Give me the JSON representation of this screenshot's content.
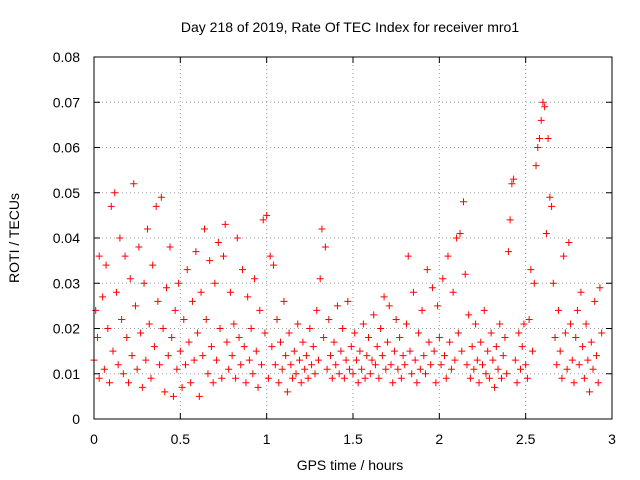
{
  "chart_data": {
    "type": "scatter",
    "title": "Day 218 of 2019, Rate Of TEC Index for receiver mro1",
    "xlabel": "GPS time / hours",
    "ylabel": "ROTI / TECUs",
    "xlim": [
      0,
      3
    ],
    "ylim": [
      0,
      0.08
    ],
    "x_ticks": [
      0,
      0.5,
      1,
      1.5,
      2,
      2.5,
      3
    ],
    "x_tick_labels": [
      "0",
      "0.5",
      "1",
      "1.5",
      "2",
      "2.5",
      "3"
    ],
    "y_ticks": [
      0,
      0.01,
      0.02,
      0.03,
      0.04,
      0.05,
      0.06,
      0.07,
      0.08
    ],
    "y_tick_labels": [
      "0",
      "0.01",
      "0.02",
      "0.03",
      "0.04",
      "0.05",
      "0.06",
      "0.07",
      "0.08"
    ],
    "grid": true,
    "marker": "+",
    "color": "#ff0000",
    "series": [
      {
        "name": "mro1",
        "points": [
          [
            0.0,
            0.013
          ],
          [
            0.01,
            0.024
          ],
          [
            0.02,
            0.018
          ],
          [
            0.03,
            0.009
          ],
          [
            0.03,
            0.036
          ],
          [
            0.05,
            0.027
          ],
          [
            0.06,
            0.011
          ],
          [
            0.07,
            0.034
          ],
          [
            0.08,
            0.02
          ],
          [
            0.09,
            0.008
          ],
          [
            0.1,
            0.047
          ],
          [
            0.11,
            0.015
          ],
          [
            0.12,
            0.05
          ],
          [
            0.13,
            0.028
          ],
          [
            0.14,
            0.012
          ],
          [
            0.15,
            0.04
          ],
          [
            0.16,
            0.022
          ],
          [
            0.17,
            0.01
          ],
          [
            0.18,
            0.036
          ],
          [
            0.19,
            0.018
          ],
          [
            0.2,
            0.008
          ],
          [
            0.21,
            0.031
          ],
          [
            0.22,
            0.014
          ],
          [
            0.23,
            0.052
          ],
          [
            0.24,
            0.025
          ],
          [
            0.25,
            0.011
          ],
          [
            0.26,
            0.038
          ],
          [
            0.27,
            0.019
          ],
          [
            0.28,
            0.007
          ],
          [
            0.29,
            0.03
          ],
          [
            0.3,
            0.013
          ],
          [
            0.31,
            0.042
          ],
          [
            0.32,
            0.021
          ],
          [
            0.33,
            0.009
          ],
          [
            0.34,
            0.034
          ],
          [
            0.35,
            0.016
          ],
          [
            0.36,
            0.047
          ],
          [
            0.37,
            0.026
          ],
          [
            0.38,
            0.012
          ],
          [
            0.39,
            0.049
          ],
          [
            0.4,
            0.02
          ],
          [
            0.41,
            0.006
          ],
          [
            0.42,
            0.029
          ],
          [
            0.43,
            0.014
          ],
          [
            0.44,
            0.038
          ],
          [
            0.45,
            0.018
          ],
          [
            0.46,
            0.005
          ],
          [
            0.47,
            0.024
          ],
          [
            0.48,
            0.011
          ],
          [
            0.49,
            0.03
          ],
          [
            0.5,
            0.015
          ],
          [
            0.51,
            0.007
          ],
          [
            0.52,
            0.022
          ],
          [
            0.53,
            0.012
          ],
          [
            0.54,
            0.033
          ],
          [
            0.55,
            0.017
          ],
          [
            0.56,
            0.008
          ],
          [
            0.57,
            0.026
          ],
          [
            0.58,
            0.013
          ],
          [
            0.59,
            0.037
          ],
          [
            0.6,
            0.019
          ],
          [
            0.61,
            0.005
          ],
          [
            0.62,
            0.028
          ],
          [
            0.63,
            0.014
          ],
          [
            0.64,
            0.042
          ],
          [
            0.65,
            0.022
          ],
          [
            0.66,
            0.01
          ],
          [
            0.67,
            0.035
          ],
          [
            0.68,
            0.016
          ],
          [
            0.69,
            0.008
          ],
          [
            0.7,
            0.03
          ],
          [
            0.71,
            0.013
          ],
          [
            0.72,
            0.039
          ],
          [
            0.73,
            0.02
          ],
          [
            0.74,
            0.009
          ],
          [
            0.75,
            0.036
          ],
          [
            0.76,
            0.043
          ],
          [
            0.77,
            0.017
          ],
          [
            0.78,
            0.011
          ],
          [
            0.79,
            0.028
          ],
          [
            0.8,
            0.014
          ],
          [
            0.81,
            0.021
          ],
          [
            0.82,
            0.009
          ],
          [
            0.83,
            0.04
          ],
          [
            0.84,
            0.018
          ],
          [
            0.85,
            0.012
          ],
          [
            0.86,
            0.033
          ],
          [
            0.87,
            0.016
          ],
          [
            0.88,
            0.008
          ],
          [
            0.89,
            0.027
          ],
          [
            0.9,
            0.013
          ],
          [
            0.91,
            0.02
          ],
          [
            0.92,
            0.01
          ],
          [
            0.93,
            0.031
          ],
          [
            0.94,
            0.015
          ],
          [
            0.95,
            0.007
          ],
          [
            0.96,
            0.024
          ],
          [
            0.97,
            0.012
          ],
          [
            0.98,
            0.044
          ],
          [
            0.99,
            0.019
          ],
          [
            1.0,
            0.045
          ],
          [
            1.01,
            0.009
          ],
          [
            1.02,
            0.036
          ],
          [
            1.03,
            0.016
          ],
          [
            1.04,
            0.034
          ],
          [
            1.05,
            0.012
          ],
          [
            1.06,
            0.022
          ],
          [
            1.07,
            0.008
          ],
          [
            1.08,
            0.017
          ],
          [
            1.09,
            0.011
          ],
          [
            1.1,
            0.026
          ],
          [
            1.11,
            0.014
          ],
          [
            1.12,
            0.006
          ],
          [
            1.13,
            0.019
          ],
          [
            1.14,
            0.012
          ],
          [
            1.15,
            0.009
          ],
          [
            1.16,
            0.015
          ],
          [
            1.17,
            0.01
          ],
          [
            1.18,
            0.021
          ],
          [
            1.19,
            0.013
          ],
          [
            1.2,
            0.008
          ],
          [
            1.21,
            0.017
          ],
          [
            1.22,
            0.011
          ],
          [
            1.23,
            0.014
          ],
          [
            1.24,
            0.009
          ],
          [
            1.25,
            0.02
          ],
          [
            1.26,
            0.012
          ],
          [
            1.27,
            0.016
          ],
          [
            1.28,
            0.01
          ],
          [
            1.29,
            0.024
          ],
          [
            1.3,
            0.013
          ],
          [
            1.31,
            0.031
          ],
          [
            1.32,
            0.042
          ],
          [
            1.33,
            0.018
          ],
          [
            1.34,
            0.038
          ],
          [
            1.35,
            0.011
          ],
          [
            1.36,
            0.022
          ],
          [
            1.37,
            0.014
          ],
          [
            1.38,
            0.009
          ],
          [
            1.39,
            0.017
          ],
          [
            1.4,
            0.012
          ],
          [
            1.41,
            0.025
          ],
          [
            1.42,
            0.01
          ],
          [
            1.43,
            0.015
          ],
          [
            1.44,
            0.02
          ],
          [
            1.45,
            0.009
          ],
          [
            1.46,
            0.013
          ],
          [
            1.47,
            0.026
          ],
          [
            1.48,
            0.011
          ],
          [
            1.49,
            0.016
          ],
          [
            1.5,
            0.01
          ],
          [
            1.51,
            0.019
          ],
          [
            1.52,
            0.013
          ],
          [
            1.53,
            0.008
          ],
          [
            1.54,
            0.015
          ],
          [
            1.55,
            0.011
          ],
          [
            1.56,
            0.021
          ],
          [
            1.57,
            0.009
          ],
          [
            1.58,
            0.014
          ],
          [
            1.59,
            0.018
          ],
          [
            1.6,
            0.01
          ],
          [
            1.61,
            0.013
          ],
          [
            1.62,
            0.023
          ],
          [
            1.63,
            0.012
          ],
          [
            1.64,
            0.016
          ],
          [
            1.65,
            0.009
          ],
          [
            1.66,
            0.02
          ],
          [
            1.67,
            0.014
          ],
          [
            1.68,
            0.027
          ],
          [
            1.69,
            0.011
          ],
          [
            1.7,
            0.017
          ],
          [
            1.71,
            0.025
          ],
          [
            1.72,
            0.012
          ],
          [
            1.73,
            0.008
          ],
          [
            1.74,
            0.015
          ],
          [
            1.75,
            0.022
          ],
          [
            1.76,
            0.011
          ],
          [
            1.77,
            0.018
          ],
          [
            1.78,
            0.009
          ],
          [
            1.79,
            0.014
          ],
          [
            1.8,
            0.012
          ],
          [
            1.81,
            0.021
          ],
          [
            1.82,
            0.036
          ],
          [
            1.83,
            0.015
          ],
          [
            1.84,
            0.01
          ],
          [
            1.85,
            0.028
          ],
          [
            1.86,
            0.013
          ],
          [
            1.87,
            0.008
          ],
          [
            1.88,
            0.019
          ],
          [
            1.89,
            0.011
          ],
          [
            1.9,
            0.024
          ],
          [
            1.91,
            0.014
          ],
          [
            1.92,
            0.01
          ],
          [
            1.93,
            0.033
          ],
          [
            1.94,
            0.017
          ],
          [
            1.95,
            0.012
          ],
          [
            1.96,
            0.029
          ],
          [
            1.97,
            0.015
          ],
          [
            1.98,
            0.008
          ],
          [
            1.99,
            0.025
          ],
          [
            2.0,
            0.018
          ],
          [
            2.01,
            0.012
          ],
          [
            2.02,
            0.031
          ],
          [
            2.03,
            0.014
          ],
          [
            2.04,
            0.009
          ],
          [
            2.05,
            0.036
          ],
          [
            2.06,
            0.017
          ],
          [
            2.07,
            0.011
          ],
          [
            2.08,
            0.028
          ],
          [
            2.09,
            0.013
          ],
          [
            2.1,
            0.04
          ],
          [
            2.11,
            0.019
          ],
          [
            2.12,
            0.041
          ],
          [
            2.13,
            0.015
          ],
          [
            2.14,
            0.048
          ],
          [
            2.15,
            0.032
          ],
          [
            2.16,
            0.012
          ],
          [
            2.17,
            0.023
          ],
          [
            2.18,
            0.009
          ],
          [
            2.19,
            0.016
          ],
          [
            2.2,
            0.011
          ],
          [
            2.21,
            0.021
          ],
          [
            2.22,
            0.013
          ],
          [
            2.23,
            0.008
          ],
          [
            2.24,
            0.017
          ],
          [
            2.25,
            0.012
          ],
          [
            2.26,
            0.024
          ],
          [
            2.27,
            0.01
          ],
          [
            2.28,
            0.015
          ],
          [
            2.29,
            0.009
          ],
          [
            2.3,
            0.019
          ],
          [
            2.31,
            0.013
          ],
          [
            2.32,
            0.007
          ],
          [
            2.33,
            0.016
          ],
          [
            2.34,
            0.011
          ],
          [
            2.35,
            0.021
          ],
          [
            2.36,
            0.009
          ],
          [
            2.37,
            0.014
          ],
          [
            2.38,
            0.018
          ],
          [
            2.39,
            0.01
          ],
          [
            2.4,
            0.037
          ],
          [
            2.41,
            0.044
          ],
          [
            2.42,
            0.052
          ],
          [
            2.43,
            0.053
          ],
          [
            2.44,
            0.013
          ],
          [
            2.45,
            0.008
          ],
          [
            2.46,
            0.019
          ],
          [
            2.47,
            0.011
          ],
          [
            2.48,
            0.016
          ],
          [
            2.49,
            0.021
          ],
          [
            2.5,
            0.012
          ],
          [
            2.51,
            0.009
          ],
          [
            2.52,
            0.022
          ],
          [
            2.53,
            0.033
          ],
          [
            2.54,
            0.015
          ],
          [
            2.55,
            0.03
          ],
          [
            2.56,
            0.056
          ],
          [
            2.57,
            0.06
          ],
          [
            2.58,
            0.062
          ],
          [
            2.59,
            0.066
          ],
          [
            2.6,
            0.07
          ],
          [
            2.61,
            0.069
          ],
          [
            2.62,
            0.041
          ],
          [
            2.63,
            0.062
          ],
          [
            2.64,
            0.049
          ],
          [
            2.65,
            0.047
          ],
          [
            2.66,
            0.03
          ],
          [
            2.67,
            0.018
          ],
          [
            2.68,
            0.012
          ],
          [
            2.69,
            0.024
          ],
          [
            2.7,
            0.015
          ],
          [
            2.71,
            0.009
          ],
          [
            2.72,
            0.036
          ],
          [
            2.73,
            0.019
          ],
          [
            2.74,
            0.011
          ],
          [
            2.75,
            0.039
          ],
          [
            2.76,
            0.021
          ],
          [
            2.77,
            0.013
          ],
          [
            2.78,
            0.008
          ],
          [
            2.79,
            0.018
          ],
          [
            2.8,
            0.024
          ],
          [
            2.81,
            0.012
          ],
          [
            2.82,
            0.028
          ],
          [
            2.83,
            0.016
          ],
          [
            2.84,
            0.009
          ],
          [
            2.85,
            0.021
          ],
          [
            2.86,
            0.013
          ],
          [
            2.87,
            0.006
          ],
          [
            2.88,
            0.017
          ],
          [
            2.89,
            0.011
          ],
          [
            2.9,
            0.026
          ],
          [
            2.91,
            0.014
          ],
          [
            2.92,
            0.008
          ],
          [
            2.93,
            0.029
          ],
          [
            2.94,
            0.019
          ]
        ]
      }
    ]
  }
}
